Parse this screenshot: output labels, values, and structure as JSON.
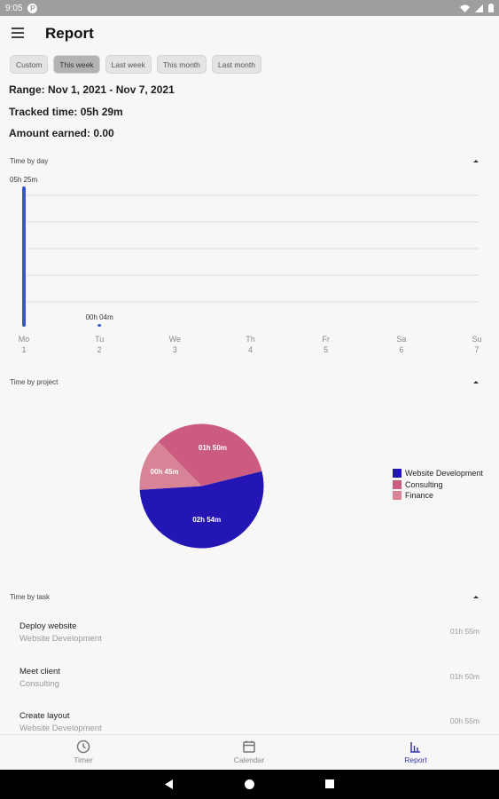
{
  "status_bar": {
    "time": "9:05",
    "badge": "P"
  },
  "app_bar": {
    "title": "Report"
  },
  "filters": [
    {
      "label": "Custom",
      "active": false
    },
    {
      "label": "This week",
      "active": true
    },
    {
      "label": "Last week",
      "active": false
    },
    {
      "label": "This month",
      "active": false
    },
    {
      "label": "Last month",
      "active": false
    }
  ],
  "summary": {
    "range": "Range: Nov 1, 2021 - Nov 7, 2021",
    "tracked": "Tracked time: 05h 29m",
    "earned": "Amount earned: 0.00"
  },
  "sections": {
    "by_day": "Time by day",
    "by_project": "Time by project",
    "by_task": "Time by task"
  },
  "chart_data": [
    {
      "type": "bar",
      "days": [
        "Mo",
        "Tu",
        "We",
        "Th",
        "Fr",
        "Sa",
        "Su"
      ],
      "dates": [
        "1",
        "2",
        "3",
        "4",
        "5",
        "6",
        "7"
      ],
      "values_minutes": [
        325,
        4,
        0,
        0,
        0,
        0,
        0
      ],
      "data_labels": [
        "05h 25m",
        "00h 04m",
        "",
        "",
        "",
        "",
        ""
      ],
      "ylim": [
        0,
        325
      ],
      "grid": true,
      "color": "#3a55c8"
    },
    {
      "type": "pie",
      "slices": [
        {
          "name": "Website Development",
          "label": "02h 54m",
          "minutes": 174,
          "color": "#2416b5"
        },
        {
          "name": "Consulting",
          "label": "01h 50m",
          "minutes": 110,
          "color": "#cc5c7f"
        },
        {
          "name": "Finance",
          "label": "00h 45m",
          "minutes": 45,
          "color": "#d98396"
        }
      ],
      "legend_position": "right"
    }
  ],
  "tasks": [
    {
      "name": "Deploy website",
      "project": "Website Development",
      "duration": "01h 55m"
    },
    {
      "name": "Meet client",
      "project": "Consulting",
      "duration": "01h 50m"
    },
    {
      "name": "Create layout",
      "project": "Website Development",
      "duration": "00h 55m"
    }
  ],
  "bottom_nav": [
    {
      "label": "Timer",
      "icon": "clock-icon",
      "active": false
    },
    {
      "label": "Calendar",
      "icon": "calendar-icon",
      "active": false
    },
    {
      "label": "Report",
      "icon": "bar-chart-icon",
      "active": true
    }
  ],
  "system_nav": [
    "back-icon",
    "home-icon",
    "recents-icon"
  ]
}
